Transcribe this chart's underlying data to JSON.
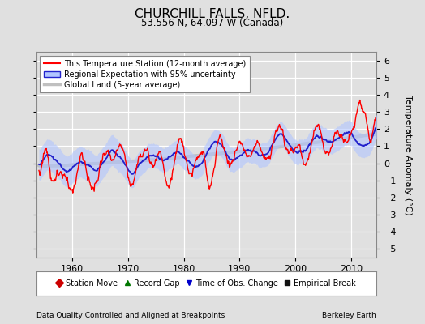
{
  "title": "CHURCHILL FALLS, NFLD.",
  "subtitle": "53.556 N, 64.097 W (Canada)",
  "ylabel": "Temperature Anomaly (°C)",
  "xlabel_left": "Data Quality Controlled and Aligned at Breakpoints",
  "xlabel_right": "Berkeley Earth",
  "ylim": [
    -5.5,
    6.5
  ],
  "xlim": [
    1953.5,
    2014.5
  ],
  "yticks": [
    -5,
    -4,
    -3,
    -2,
    -1,
    0,
    1,
    2,
    3,
    4,
    5,
    6
  ],
  "xticks": [
    1960,
    1970,
    1980,
    1990,
    2000,
    2010
  ],
  "bg_color": "#e0e0e0",
  "plot_bg_color": "#e0e0e0",
  "grid_color": "#ffffff",
  "legend_items": [
    {
      "label": "This Temperature Station (12-month average)",
      "color": "#ff0000",
      "lw": 1.5
    },
    {
      "label": "Regional Expectation with 95% uncertainty",
      "color": "#4444ff",
      "lw": 1.5
    },
    {
      "label": "Global Land (5-year average)",
      "color": "#aaaaaa",
      "lw": 2.5
    }
  ],
  "markers": [
    {
      "label": "Station Move",
      "color": "#cc0000",
      "marker": "D"
    },
    {
      "label": "Record Gap",
      "color": "#007700",
      "marker": "^"
    },
    {
      "label": "Time of Obs. Change",
      "color": "#0000cc",
      "marker": "v"
    },
    {
      "label": "Empirical Break",
      "color": "#111111",
      "marker": "s"
    }
  ]
}
